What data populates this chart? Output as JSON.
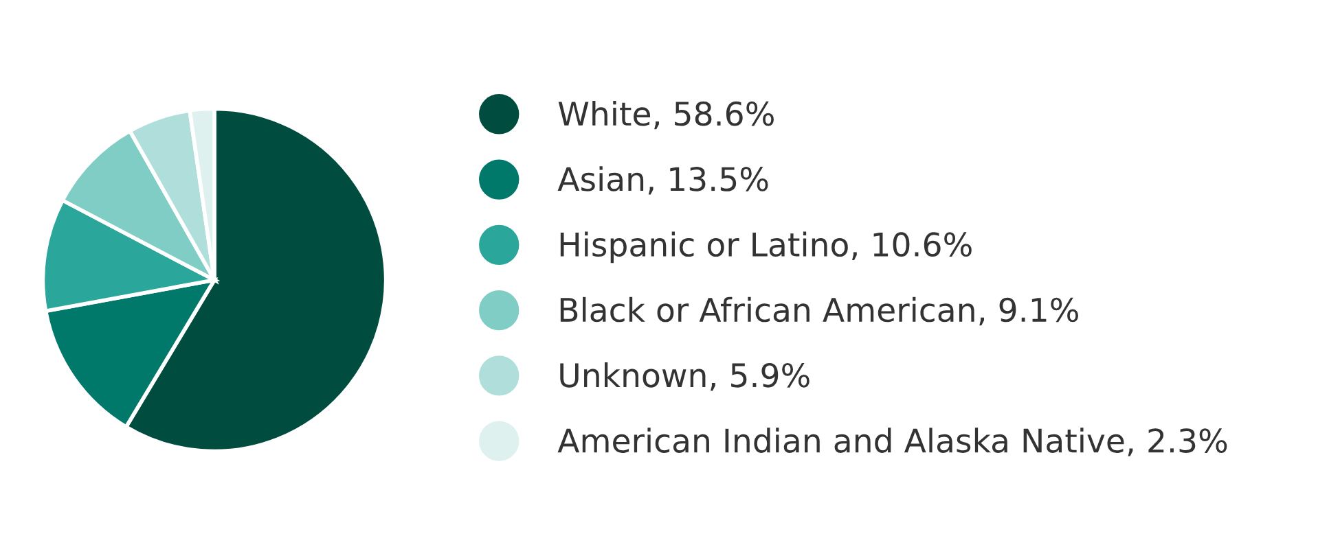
{
  "chart_data": {
    "type": "pie",
    "categories": [
      "White",
      "Asian",
      "Hispanic or Latino",
      "Black or African American",
      "Unknown",
      "American Indian and Alaska Native"
    ],
    "values": [
      58.6,
      13.5,
      10.6,
      9.1,
      5.9,
      2.3
    ],
    "value_labels": [
      "58.6%",
      "13.5%",
      "10.6%",
      "9.1%",
      "5.9%",
      "2.3%"
    ],
    "colors": [
      "#004c3f",
      "#00786a",
      "#2aa69a",
      "#7fcdc4",
      "#b0dfdb",
      "#dff1ef"
    ],
    "legend": "right"
  }
}
